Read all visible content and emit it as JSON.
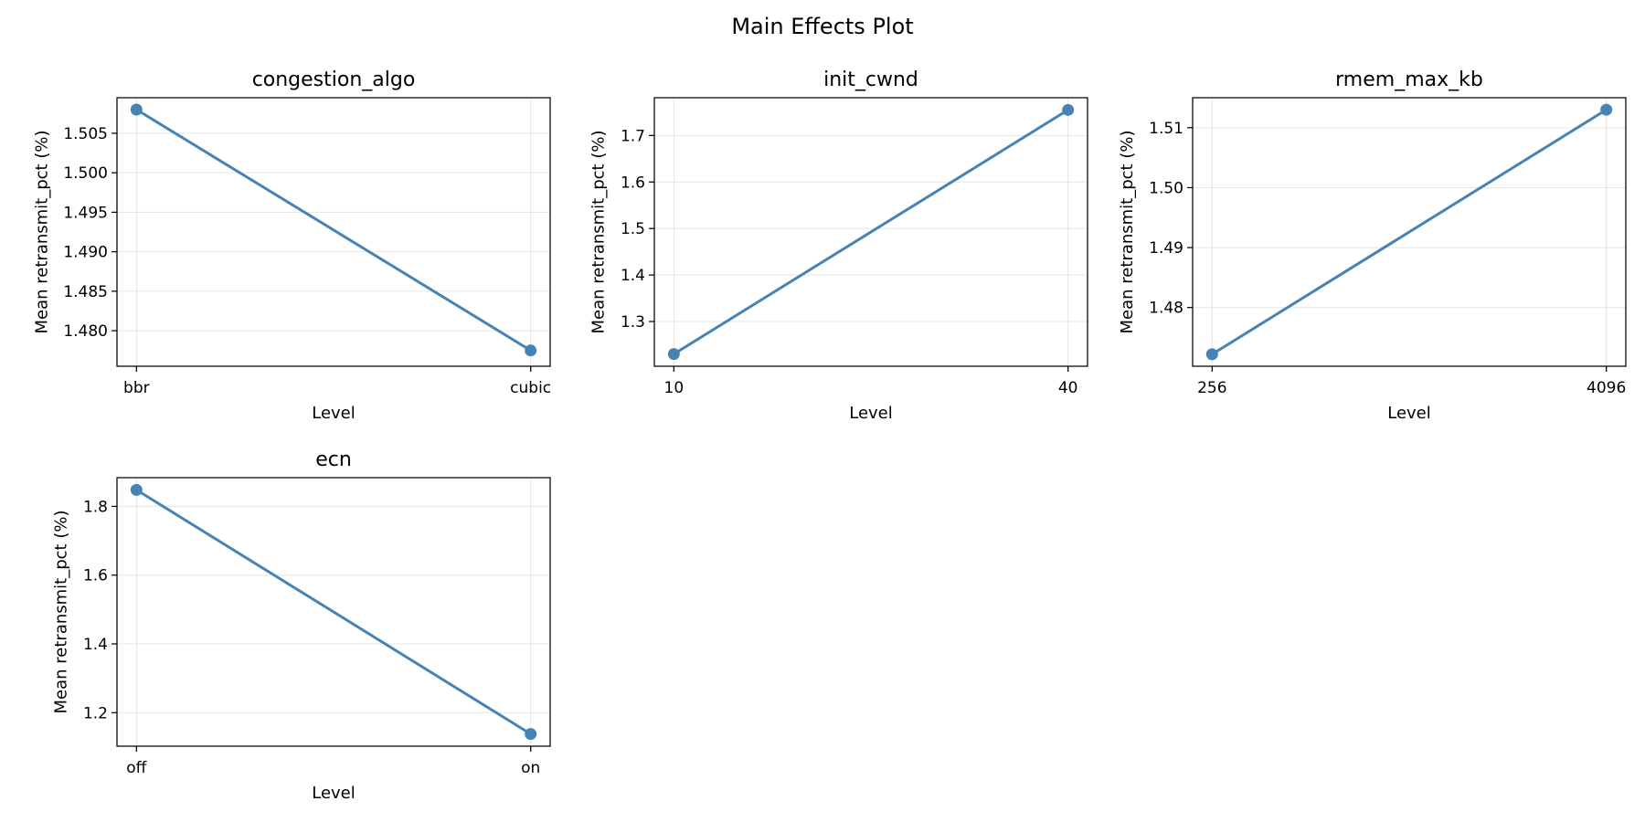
{
  "title": "Main Effects Plot",
  "chart_data": [
    {
      "type": "line",
      "title": "congestion_algo",
      "xlabel": "Level",
      "ylabel": "Mean retransmit_pct (%)",
      "categories": [
        "bbr",
        "cubic"
      ],
      "values": [
        1.508,
        1.4775
      ],
      "ylim": [
        1.4755,
        1.5095
      ],
      "yticks": [
        "1.480",
        "1.485",
        "1.490",
        "1.495",
        "1.500",
        "1.505"
      ],
      "grid": true,
      "color": "#4682b4"
    },
    {
      "type": "line",
      "title": "init_cwnd",
      "xlabel": "Level",
      "ylabel": "Mean retransmit_pct (%)",
      "categories": [
        "10",
        "40"
      ],
      "values": [
        1.23,
        1.755
      ],
      "ylim": [
        1.2038,
        1.7812
      ],
      "yticks": [
        "1.3",
        "1.4",
        "1.5",
        "1.6",
        "1.7"
      ],
      "grid": true,
      "color": "#4682b4"
    },
    {
      "type": "line",
      "title": "rmem_max_kb",
      "xlabel": "Level",
      "ylabel": "Mean retransmit_pct (%)",
      "categories": [
        "256",
        "4096"
      ],
      "values": [
        1.4722,
        1.513
      ],
      "ylim": [
        1.4702,
        1.515
      ],
      "yticks": [
        "1.48",
        "1.49",
        "1.50",
        "1.51"
      ],
      "grid": true,
      "color": "#4682b4"
    },
    {
      "type": "line",
      "title": "ecn",
      "xlabel": "Level",
      "ylabel": "Mean retransmit_pct (%)",
      "categories": [
        "off",
        "on"
      ],
      "values": [
        1.848,
        1.138
      ],
      "ylim": [
        1.1025,
        1.8835
      ],
      "yticks": [
        "1.2",
        "1.4",
        "1.6",
        "1.8"
      ],
      "grid": true,
      "color": "#4682b4"
    }
  ]
}
